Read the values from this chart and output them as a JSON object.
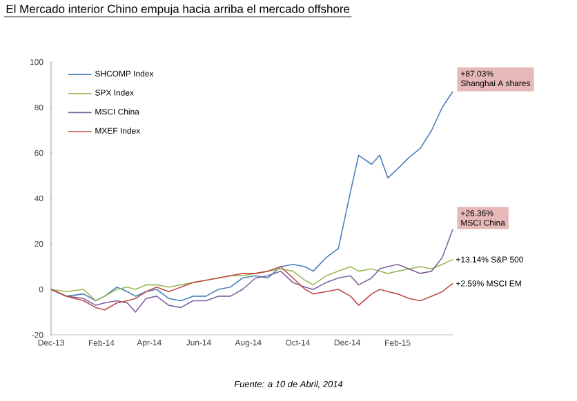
{
  "chart_data": {
    "type": "line",
    "title": "El Mercado interior Chino empuja hacia arriba el mercado offshore",
    "x": [
      "2013-12-01",
      "2013-12-20",
      "2014-01-10",
      "2014-01-25",
      "2014-02-05",
      "2014-02-20",
      "2014-03-05",
      "2014-03-15",
      "2014-03-28",
      "2014-04-10",
      "2014-04-25",
      "2014-05-10",
      "2014-05-25",
      "2014-06-10",
      "2014-06-25",
      "2014-07-10",
      "2014-07-25",
      "2014-08-10",
      "2014-08-25",
      "2014-09-10",
      "2014-09-25",
      "2014-10-10",
      "2014-10-20",
      "2014-11-05",
      "2014-11-20",
      "2014-12-05",
      "2014-12-15",
      "2014-12-31",
      "2015-01-10",
      "2015-01-20",
      "2015-02-01",
      "2015-02-15",
      "2015-03-01",
      "2015-03-15",
      "2015-03-28",
      "2015-04-10"
    ],
    "series": [
      {
        "name": "SHCOMP Index",
        "color": "#4a7ebb",
        "values": [
          0,
          -3,
          -2,
          -5,
          -3,
          1,
          -1,
          -3,
          -1,
          0,
          -4,
          -5,
          -3,
          -3,
          0,
          1,
          5,
          6,
          5,
          10,
          11,
          10,
          8,
          14,
          18,
          43,
          59,
          55,
          59,
          49,
          53,
          58,
          62,
          70,
          80,
          87.03
        ]
      },
      {
        "name": "SPX Index",
        "color": "#98b954",
        "values": [
          0,
          -1,
          0,
          -5,
          -3,
          0,
          1,
          0,
          2,
          2,
          1,
          2,
          3,
          4,
          5,
          6,
          6,
          7,
          8,
          9,
          8,
          4,
          2,
          6,
          8,
          10,
          8,
          9,
          8,
          7,
          8,
          9,
          10,
          9,
          11,
          13.14
        ]
      },
      {
        "name": "MSCI China",
        "color": "#7d60a0",
        "values": [
          0,
          -3,
          -4,
          -7,
          -6,
          -5,
          -6,
          -10,
          -4,
          -3,
          -7,
          -8,
          -5,
          -5,
          -3,
          -3,
          0,
          5,
          6,
          8,
          3,
          1,
          0,
          3,
          5,
          6,
          2,
          5,
          9,
          10,
          11,
          9,
          7,
          8,
          14,
          26.36
        ]
      },
      {
        "name": "MXEF Index",
        "color": "#be4b48",
        "values": [
          0,
          -3,
          -5,
          -8,
          -9,
          -6,
          -5,
          -4,
          -1,
          1,
          -1,
          1,
          3,
          4,
          5,
          6,
          7,
          7,
          8,
          10,
          5,
          0,
          -2,
          -1,
          0,
          -3,
          -7,
          -2,
          0,
          -1,
          -2,
          -4,
          -5,
          -3,
          -1,
          2.59
        ]
      }
    ],
    "xticks": [
      {
        "value": "2013-12-01",
        "label": "Dec-13"
      },
      {
        "value": "2014-02-01",
        "label": "Feb-14"
      },
      {
        "value": "2014-04-01",
        "label": "Apr-14"
      },
      {
        "value": "2014-06-01",
        "label": "Jun-14"
      },
      {
        "value": "2014-08-01",
        "label": "Aug-14"
      },
      {
        "value": "2014-10-01",
        "label": "Oct-14"
      },
      {
        "value": "2014-12-01",
        "label": "Dec-14"
      },
      {
        "value": "2015-02-01",
        "label": "Feb-15"
      }
    ],
    "xlim": [
      "2013-12-01",
      "2015-04-10"
    ],
    "ylim": [
      -20,
      100
    ],
    "yticks": [
      -20,
      0,
      20,
      40,
      60,
      80,
      100
    ],
    "grid": false,
    "legend": "top left",
    "marker": "none",
    "line_style": "solid",
    "annotations": [
      {
        "text": "+87.03%",
        "x": "2015-04-10",
        "y": 87.03
      },
      {
        "text": "Shanghai A shares",
        "x": "2015-04-10",
        "y": 87.03
      },
      {
        "text": "+26.36%",
        "x": "2015-04-10",
        "y": 26.36
      },
      {
        "text": "MSCI China",
        "x": "2015-04-10",
        "y": 26.36
      },
      {
        "text": "+13.14% S&P 500",
        "x": "2015-04-10",
        "y": 13.14
      },
      {
        "text": "+2.59% MSCI EM",
        "x": "2015-04-10",
        "y": 2.59
      },
      "Fuente: a 10 de Abril, 2014"
    ]
  }
}
